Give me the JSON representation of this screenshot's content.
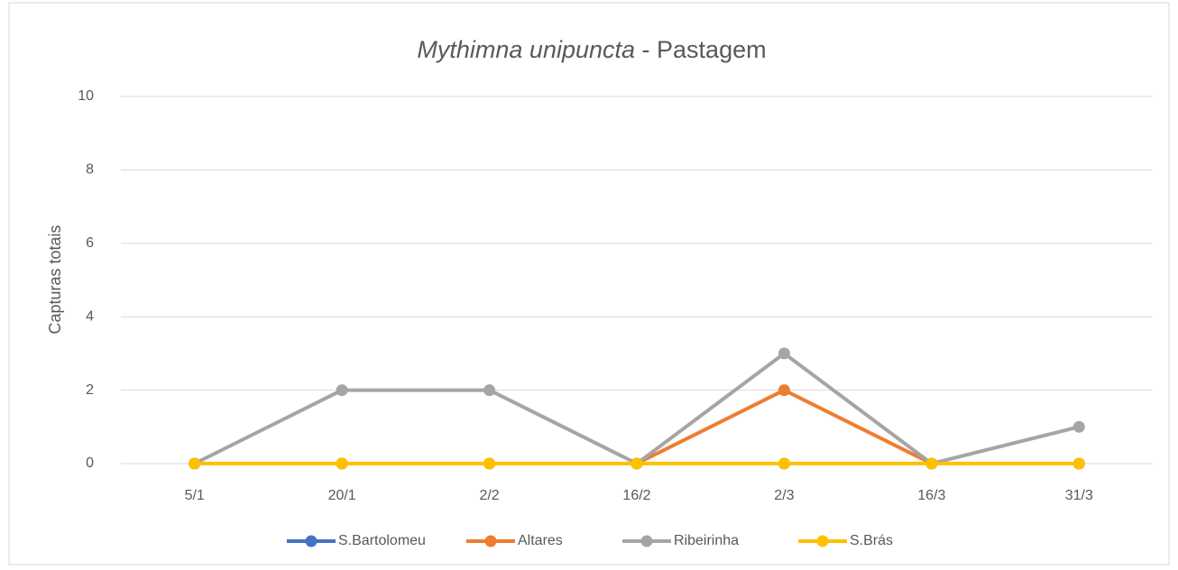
{
  "chart_data": {
    "type": "line",
    "title": {
      "italic": "Mythimna unipuncta",
      "text": " - Pastagem"
    },
    "y_label": "Capturas totais",
    "categories": [
      "5/1",
      "20/1",
      "2/2",
      "16/2",
      "2/3",
      "16/3",
      "31/3"
    ],
    "series": [
      {
        "name": "S.Bartolomeu",
        "color": "#4472c4",
        "values": [
          0,
          0,
          0,
          0,
          0,
          0,
          0
        ]
      },
      {
        "name": "Altares",
        "color": "#ed7d31",
        "values": [
          0,
          0,
          0,
          0,
          2,
          0,
          0
        ]
      },
      {
        "name": "Ribeirinha",
        "color": "#a5a5a5",
        "values": [
          0,
          2,
          2,
          0,
          3,
          0,
          1
        ]
      },
      {
        "name": "S.Brás",
        "color": "#ffc000",
        "values": [
          0,
          0,
          0,
          0,
          0,
          0,
          0
        ]
      }
    ],
    "ylim": [
      0,
      10
    ],
    "yticks": [
      0,
      2,
      4,
      6,
      8,
      10
    ],
    "grid": true,
    "legend": "bottom"
  }
}
